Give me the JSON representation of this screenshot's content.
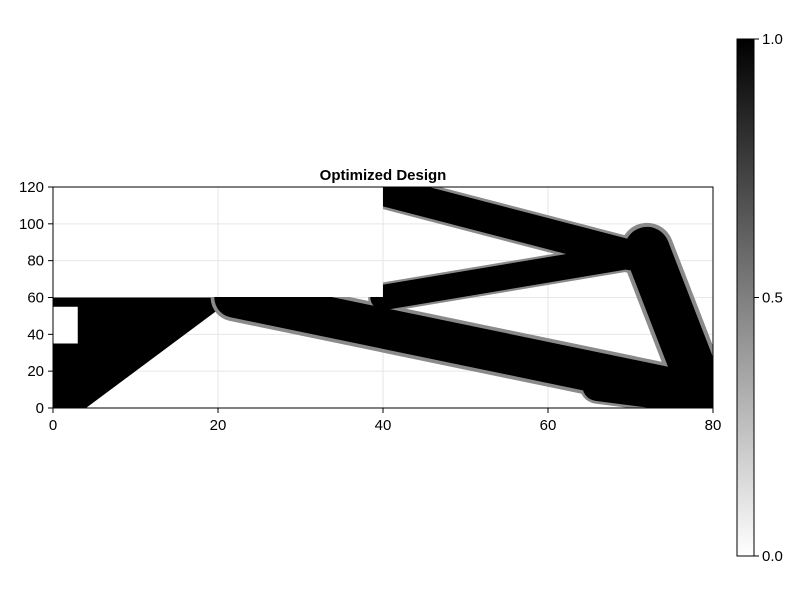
{
  "chart_data": {
    "type": "heatmap",
    "title": "Optimized Design",
    "xlabel": "",
    "ylabel": "",
    "xlim": [
      0,
      80
    ],
    "ylim": [
      0,
      120
    ],
    "x_ticks": [
      0,
      20,
      40,
      60,
      80
    ],
    "y_ticks": [
      0,
      20,
      40,
      60,
      80,
      100,
      120
    ],
    "x_tick_labels": [
      "0",
      "20",
      "40",
      "60",
      "80"
    ],
    "y_tick_labels": [
      "0",
      "20",
      "40",
      "60",
      "80",
      "100",
      "120"
    ],
    "grid": true,
    "colormap": "grayscale (0 = white, 1 = black)",
    "colorbar": {
      "range": [
        0.0,
        1.0
      ],
      "ticks": [
        0.0,
        0.5,
        1.0
      ],
      "tick_labels": [
        "0.0",
        "0.5",
        "1.0"
      ],
      "position": "right"
    },
    "domain_note": "L-shaped design region; upper-left block x 0-40, y 60-120 is outside the domain",
    "solid_regions": [
      {
        "name": "left support wedge",
        "polygon": [
          [
            0,
            60
          ],
          [
            22,
            60
          ],
          [
            4,
            0
          ],
          [
            0,
            0
          ]
        ]
      },
      {
        "name": "left opening",
        "polygon": [
          [
            0,
            55
          ],
          [
            3,
            55
          ],
          [
            3,
            35
          ],
          [
            0,
            35
          ]
        ],
        "density": 0
      }
    ],
    "members": [
      {
        "from": [
          40,
          118
        ],
        "to": [
          70,
          83
        ],
        "width": 6
      },
      {
        "from": [
          40,
          60
        ],
        "to": [
          72,
          84
        ],
        "width": 5
      },
      {
        "from": [
          22,
          60
        ],
        "to": [
          78,
          8
        ],
        "width": 8
      },
      {
        "from": [
          72,
          86
        ],
        "to": [
          79,
          5
        ],
        "width": 9
      },
      {
        "from": [
          66,
          12
        ],
        "to": [
          80,
          4
        ],
        "width": 6
      }
    ]
  }
}
